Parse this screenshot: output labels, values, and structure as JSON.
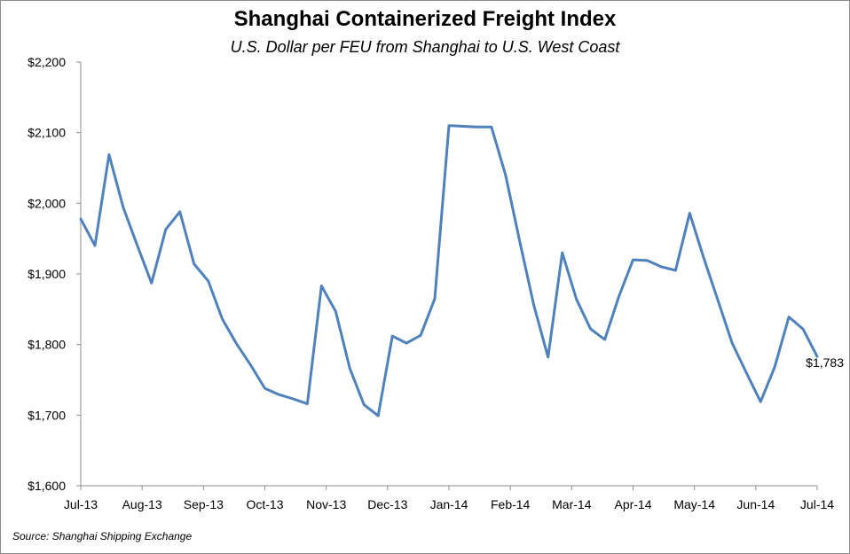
{
  "chart_data": {
    "type": "line",
    "title": "Shanghai Containerized Freight Index",
    "subtitle": "U.S. Dollar per FEU from Shanghai to U.S. West Coast",
    "source": "Source: Shanghai Shipping Exchange",
    "xlabel": "",
    "ylabel": "",
    "ylim": [
      1600,
      2200
    ],
    "y_ticks": [
      1600,
      1700,
      1800,
      1900,
      2000,
      2100,
      2200
    ],
    "y_tick_labels": [
      "$1,600",
      "$1,700",
      "$1,800",
      "$1,900",
      "$2,000",
      "$2,100",
      "$2,200"
    ],
    "x_tick_labels": [
      "Jul-13",
      "Aug-13",
      "Sep-13",
      "Oct-13",
      "Nov-13",
      "Dec-13",
      "Jan-14",
      "Feb-14",
      "Mar-14",
      "Apr-14",
      "May-14",
      "Jun-14",
      "Jul-14"
    ],
    "grid": false,
    "line_color": "#4f81bd",
    "series": [
      {
        "values": [
          1978,
          1940,
          2069,
          1994,
          1940,
          1887,
          1963,
          1988,
          1914,
          1890,
          1836,
          1801,
          1771,
          1738,
          1729,
          1723,
          1716,
          1883,
          1847,
          1766,
          1715,
          1699,
          1812,
          1802,
          1813,
          1865,
          2110,
          2109,
          2108,
          2108,
          2040,
          1946,
          1855,
          1782,
          1930,
          1864,
          1822,
          1807,
          1868,
          1920,
          1919,
          1910,
          1905,
          1986,
          1922,
          1862,
          1802,
          1760,
          1719,
          1768,
          1839,
          1822,
          1783
        ]
      }
    ],
    "last_value_label": "$1,783"
  }
}
